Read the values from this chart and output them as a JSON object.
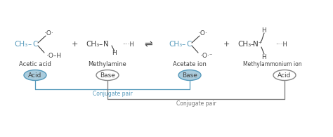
{
  "bg_color": "#ffffff",
  "blue": "#5599bb",
  "dark": "#404040",
  "gray": "#777777",
  "acid_fill": "#aaccdd",
  "acid_edge": "#5599bb",
  "base_edge": "#888888",
  "figsize": [
    4.74,
    1.95
  ],
  "dpi": 100,
  "labels": {
    "acetic_acid": "Acetic acid",
    "methylamine": "Methylamine",
    "acetate": "Acetate ion",
    "methylammonium": "Methylammonium ion"
  },
  "acid_base_labels": [
    "Acid",
    "Base",
    "Base",
    "Acid"
  ],
  "conjugate_pair": "Conjugate pair"
}
